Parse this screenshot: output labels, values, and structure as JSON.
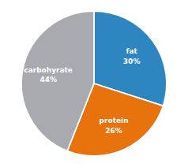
{
  "chart_data": {
    "type": "pie",
    "categories": [
      "fat",
      "protein",
      "carbohyrate"
    ],
    "values": [
      30,
      26,
      44
    ],
    "value_labels": [
      "30%",
      "26%",
      "44%"
    ],
    "colors": [
      "#2E86C1",
      "#E8720C",
      "#A9A9B0"
    ],
    "data_labels": true
  }
}
